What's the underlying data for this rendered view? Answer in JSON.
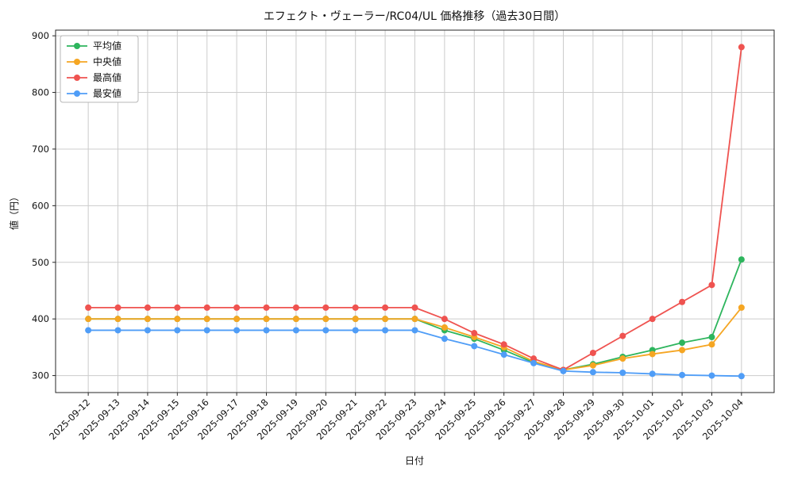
{
  "chart_data": {
    "type": "line",
    "title": "エフェクト・ヴェーラー/RC04/UL 価格推移（過去30日間）",
    "xlabel": "日付",
    "ylabel": "値（円）",
    "categories": [
      "2025-09-12",
      "2025-09-13",
      "2025-09-14",
      "2025-09-15",
      "2025-09-16",
      "2025-09-17",
      "2025-09-18",
      "2025-09-19",
      "2025-09-20",
      "2025-09-21",
      "2025-09-22",
      "2025-09-23",
      "2025-09-24",
      "2025-09-25",
      "2025-09-26",
      "2025-09-27",
      "2025-09-28",
      "2025-09-29",
      "2025-09-30",
      "2025-10-01",
      "2025-10-02",
      "2025-10-03",
      "2025-10-04"
    ],
    "series": [
      {
        "key": "average",
        "name": "平均値",
        "color": "#2db55d",
        "values": [
          400,
          400,
          400,
          400,
          400,
          400,
          400,
          400,
          400,
          400,
          400,
          400,
          380,
          365,
          345,
          323,
          310,
          320,
          333,
          345,
          358,
          368,
          505
        ]
      },
      {
        "key": "median",
        "name": "中央値",
        "color": "#f5a623",
        "values": [
          400,
          400,
          400,
          400,
          400,
          400,
          400,
          400,
          400,
          400,
          400,
          400,
          385,
          368,
          350,
          325,
          310,
          318,
          330,
          338,
          345,
          355,
          420
        ]
      },
      {
        "key": "highest",
        "name": "最高値",
        "color": "#ef5350",
        "values": [
          420,
          420,
          420,
          420,
          420,
          420,
          420,
          420,
          420,
          420,
          420,
          420,
          400,
          375,
          355,
          330,
          310,
          340,
          370,
          400,
          430,
          460,
          880
        ]
      },
      {
        "key": "lowest",
        "name": "最安値",
        "color": "#4f9df7",
        "values": [
          380,
          380,
          380,
          380,
          380,
          380,
          380,
          380,
          380,
          380,
          380,
          380,
          365,
          352,
          337,
          322,
          308,
          306,
          305,
          303,
          301,
          300,
          299
        ]
      }
    ],
    "yticks": [
      300,
      400,
      500,
      600,
      700,
      800,
      900
    ],
    "ylim": [
      270,
      910
    ],
    "grid": true,
    "legend_position": "upper-left",
    "colors": {
      "grid": "#cccccc",
      "axis": "#262626",
      "text": "#111111",
      "background": "#ffffff"
    }
  }
}
